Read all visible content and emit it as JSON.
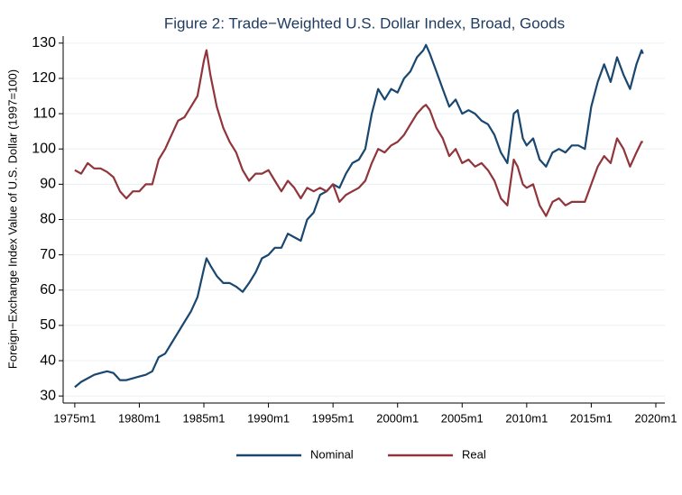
{
  "chart_data": {
    "type": "line",
    "title": "Figure 2: Trade−Weighted U.S. Dollar Index, Broad, Goods",
    "y_label": "Foreign−Exchange Index Value of U.S. Dollar (1997=100)",
    "x": [
      1975,
      1975.5,
      1976,
      1976.5,
      1977,
      1977.5,
      1978,
      1978.5,
      1979,
      1979.5,
      1980,
      1980.5,
      1981,
      1981.5,
      1982,
      1982.5,
      1983,
      1983.5,
      1984,
      1984.5,
      1985,
      1985.2,
      1985.5,
      1986,
      1986.5,
      1987,
      1987.5,
      1988,
      1988.5,
      1989,
      1989.5,
      1990,
      1990.5,
      1991,
      1991.5,
      1992,
      1992.5,
      1993,
      1993.5,
      1994,
      1994.5,
      1995,
      1995.5,
      1996,
      1996.5,
      1997,
      1997.5,
      1998,
      1998.5,
      1999,
      1999.5,
      2000,
      2000.5,
      2001,
      2001.5,
      2002,
      2002.2,
      2002.5,
      2003,
      2003.5,
      2004,
      2004.5,
      2005,
      2005.5,
      2006,
      2006.5,
      2007,
      2007.5,
      2008,
      2008.5,
      2009,
      2009.3,
      2009.7,
      2010,
      2010.5,
      2011,
      2011.5,
      2012,
      2012.5,
      2013,
      2013.5,
      2014,
      2014.5,
      2015,
      2015.5,
      2016,
      2016.5,
      2017,
      2017.5,
      2018,
      2018.5,
      2018.9,
      2019
    ],
    "series": [
      {
        "name": "Nominal",
        "color": "#1a476f",
        "values": [
          32.5,
          34,
          35,
          36,
          36.5,
          37,
          36.5,
          34.5,
          34.5,
          35,
          35.5,
          36,
          37,
          41,
          42,
          45,
          48,
          51,
          54,
          58,
          66,
          69,
          67,
          64,
          62,
          62,
          61,
          59.5,
          62,
          65,
          69,
          70,
          72,
          72,
          76,
          75,
          74,
          80,
          82,
          87,
          88,
          90,
          89,
          93,
          96,
          97,
          100,
          110,
          117,
          114,
          117,
          116,
          120,
          122,
          126,
          128,
          129.5,
          127,
          122,
          117,
          112,
          114,
          110,
          111,
          110,
          108,
          107,
          104,
          99,
          96,
          110,
          111,
          103,
          101,
          103,
          97,
          95,
          99,
          100,
          99,
          101,
          101,
          100,
          112,
          119,
          124,
          119,
          126,
          121,
          117,
          124,
          128,
          127
        ]
      },
      {
        "name": "Real",
        "color": "#90353b",
        "values": [
          94,
          93,
          96,
          94.5,
          94.5,
          93.5,
          92,
          88,
          86,
          88,
          88,
          90,
          90,
          97,
          100,
          104,
          108,
          109,
          112,
          115,
          125,
          128,
          121,
          112,
          106,
          102,
          99,
          94,
          91,
          93,
          93,
          94,
          91,
          88,
          91,
          89,
          86,
          89,
          88,
          89,
          88,
          90,
          85,
          87,
          88,
          89,
          91,
          96,
          100,
          99,
          101,
          102,
          104,
          107,
          110,
          112,
          112.5,
          111,
          106,
          103,
          98,
          100,
          96,
          97,
          95,
          96,
          94,
          91,
          86,
          84,
          97,
          95,
          90,
          89,
          90,
          84,
          81,
          85,
          86,
          84,
          85,
          85,
          85,
          90,
          95,
          98,
          96,
          103,
          100,
          95,
          99,
          102,
          102
        ]
      }
    ],
    "xlim": [
      1974.1,
      2020.7
    ],
    "xticks": [
      {
        "value": 1975,
        "label": "1975m1"
      },
      {
        "value": 1980,
        "label": "1980m1"
      },
      {
        "value": 1985,
        "label": "1985m1"
      },
      {
        "value": 1990,
        "label": "1990m1"
      },
      {
        "value": 1995,
        "label": "1995m1"
      },
      {
        "value": 2000,
        "label": "2000m1"
      },
      {
        "value": 2005,
        "label": "2005m1"
      },
      {
        "value": 2010,
        "label": "2010m1"
      },
      {
        "value": 2015,
        "label": "2015m1"
      },
      {
        "value": 2020,
        "label": "2020m1"
      }
    ],
    "ylim": [
      28,
      132
    ],
    "yticks": [
      30,
      40,
      50,
      60,
      70,
      80,
      90,
      100,
      110,
      120,
      130
    ],
    "grid": true
  }
}
